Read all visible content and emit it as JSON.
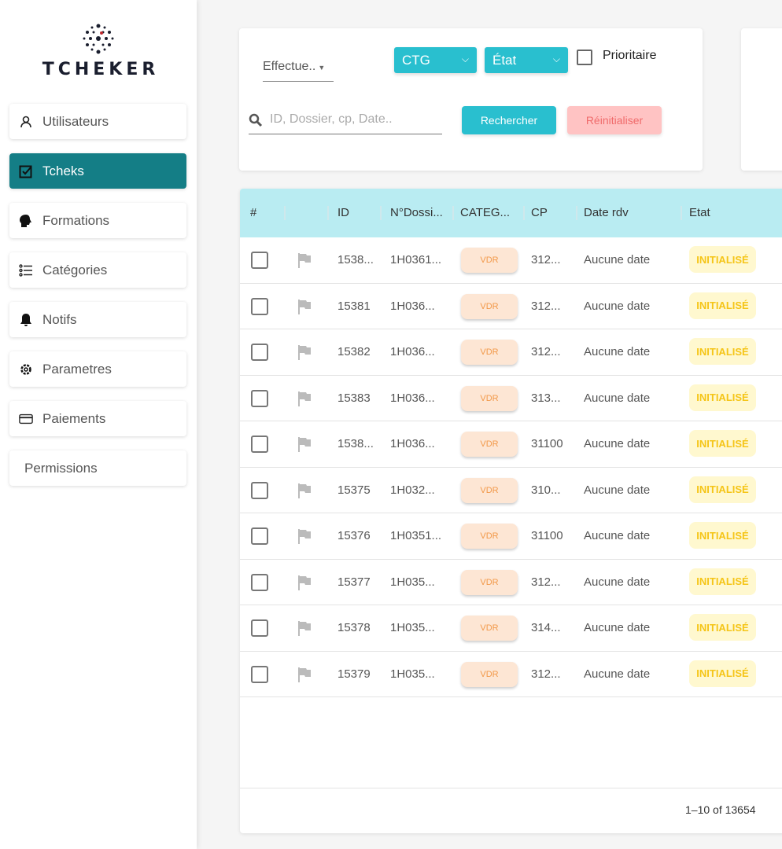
{
  "brand": {
    "name": "TCHEKER"
  },
  "sidebar": {
    "items": [
      {
        "label": "Utilisateurs",
        "icon": "user-icon"
      },
      {
        "label": "Tcheks",
        "icon": "checkbox-icon",
        "active": true
      },
      {
        "label": "Formations",
        "icon": "head-icon"
      },
      {
        "label": "Catégories",
        "icon": "list-icon"
      },
      {
        "label": "Notifs",
        "icon": "bell-icon"
      },
      {
        "label": "Parametres",
        "icon": "gear-icon"
      },
      {
        "label": "Paiements",
        "icon": "credit-card-icon"
      },
      {
        "label": "Permissions",
        "icon": ""
      }
    ]
  },
  "filters": {
    "effectue": "Effectue..",
    "ctg": "CTG",
    "etat": "État",
    "prioritaire": "Prioritaire",
    "search_placeholder": "ID, Dossier, cp, Date..",
    "search_btn": "Rechercher",
    "reset_btn": "Réinitialiser"
  },
  "table": {
    "headers": [
      "#",
      "",
      "ID",
      "N°Dossi...",
      "CATEG...",
      "CP",
      "Date rdv",
      "Etat"
    ],
    "rows": [
      {
        "id": "1538...",
        "dossier": "1H0361...",
        "cat": "VDR",
        "cp": "312...",
        "date": "Aucune date",
        "etat": "INITIALISÉ"
      },
      {
        "id": "15381",
        "dossier": "1H036...",
        "cat": "VDR",
        "cp": "312...",
        "date": "Aucune date",
        "etat": "INITIALISÉ"
      },
      {
        "id": "15382",
        "dossier": "1H036...",
        "cat": "VDR",
        "cp": "312...",
        "date": "Aucune date",
        "etat": "INITIALISÉ"
      },
      {
        "id": "15383",
        "dossier": "1H036...",
        "cat": "VDR",
        "cp": "313...",
        "date": "Aucune date",
        "etat": "INITIALISÉ"
      },
      {
        "id": "1538...",
        "dossier": "1H036...",
        "cat": "VDR",
        "cp": "31100",
        "date": "Aucune date",
        "etat": "INITIALISÉ"
      },
      {
        "id": "15375",
        "dossier": "1H032...",
        "cat": "VDR",
        "cp": "310...",
        "date": "Aucune date",
        "etat": "INITIALISÉ"
      },
      {
        "id": "15376",
        "dossier": "1H0351...",
        "cat": "VDR",
        "cp": "31100",
        "date": "Aucune date",
        "etat": "INITIALISÉ"
      },
      {
        "id": "15377",
        "dossier": "1H035...",
        "cat": "VDR",
        "cp": "312...",
        "date": "Aucune date",
        "etat": "INITIALISÉ"
      },
      {
        "id": "15378",
        "dossier": "1H035...",
        "cat": "VDR",
        "cp": "314...",
        "date": "Aucune date",
        "etat": "INITIALISÉ"
      },
      {
        "id": "15379",
        "dossier": "1H035...",
        "cat": "VDR",
        "cp": "312...",
        "date": "Aucune date",
        "etat": "INITIALISÉ"
      }
    ],
    "pagination": "1–10 of 13654"
  },
  "colors": {
    "accent": "#29bfcf",
    "active_nav": "#147e86",
    "header": "#b9ecf2"
  }
}
